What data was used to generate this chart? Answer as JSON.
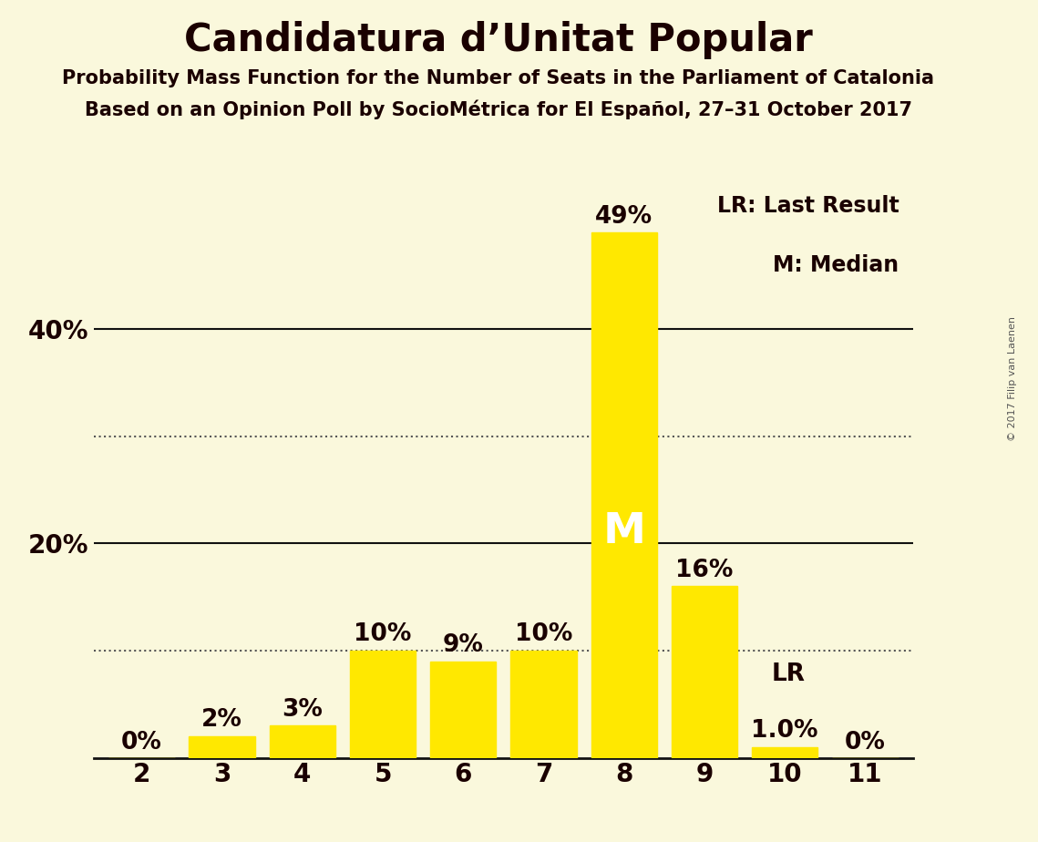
{
  "title": "Candidatura d’Unitat Popular",
  "subtitle1": "Probability Mass Function for the Number of Seats in the Parliament of Catalonia",
  "subtitle2": "Based on an Opinion Poll by SocioMétrica for El Español, 27–31 October 2017",
  "copyright": "© 2017 Filip van Laenen",
  "categories": [
    2,
    3,
    4,
    5,
    6,
    7,
    8,
    9,
    10,
    11
  ],
  "values": [
    0,
    2,
    3,
    10,
    9,
    10,
    49,
    16,
    1.0,
    0
  ],
  "labels": [
    "0%",
    "2%",
    "3%",
    "10%",
    "9%",
    "10%",
    "49%",
    "16%",
    "1.0%",
    "0%"
  ],
  "bar_color": "#FFE800",
  "background_color": "#FAF8DC",
  "dotted_lines": [
    10,
    30
  ],
  "solid_lines": [
    20,
    40
  ],
  "ytick_positions": [
    20,
    40
  ],
  "ytick_labels": [
    "20%",
    "40%"
  ],
  "ylim": [
    0,
    55
  ],
  "median_seat": 8,
  "median_label": "M",
  "lr_seat": 10,
  "lr_label": "LR",
  "legend_lr": "LR: Last Result",
  "legend_m": "M: Median",
  "title_fontsize": 30,
  "subtitle_fontsize": 15,
  "label_fontsize": 19,
  "tick_fontsize": 20,
  "legend_fontsize": 17,
  "median_fontsize": 34,
  "copyright_fontsize": 8
}
